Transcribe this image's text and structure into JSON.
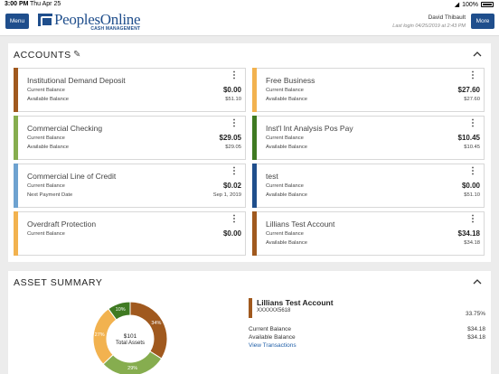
{
  "status": {
    "time": "3:00 PM",
    "date": "Thu Apr 25",
    "battery": "100%"
  },
  "header": {
    "menu_label": "Menu",
    "more_label": "More",
    "brand_name": "PeoplesOnline",
    "brand_sub": "CASH MANAGEMENT",
    "user_name": "David Thibault",
    "last_login": "Last login 04/25/2019 at 2:43 PM"
  },
  "accounts": {
    "title": "ACCOUNTS",
    "cards": [
      {
        "name": "Institutional Demand Deposit",
        "color": "#a0591e",
        "l1": "Current Balance",
        "v1": "$0.00",
        "l2": "Available Balance",
        "v2": "$51.10"
      },
      {
        "name": "Free Business",
        "color": "#f2b24f",
        "l1": "Current Balance",
        "v1": "$27.60",
        "l2": "Available Balance",
        "v2": "$27.60"
      },
      {
        "name": "Commercial Checking",
        "color": "#86ad4f",
        "l1": "Current Balance",
        "v1": "$29.05",
        "l2": "Available Balance",
        "v2": "$29.05"
      },
      {
        "name": "Inst'l Int Analysis Pos Pay",
        "color": "#3f7a22",
        "l1": "Current Balance",
        "v1": "$10.45",
        "l2": "Available Balance",
        "v2": "$10.45"
      },
      {
        "name": "Commercial Line of Credit",
        "color": "#6ea2d0",
        "l1": "Current Balance",
        "v1": "$0.02",
        "l2": "Next Payment Date",
        "v2": "Sep 1, 2019"
      },
      {
        "name": "test",
        "color": "#1f4e8c",
        "l1": "Current Balance",
        "v1": "$0.00",
        "l2": "Available Balance",
        "v2": "$51.10"
      },
      {
        "name": "Overdraft Protection",
        "color": "#f2b24f",
        "l1": "Current Balance",
        "v1": "$0.00",
        "l2": "",
        "v2": ""
      },
      {
        "name": "Lillians Test Account",
        "color": "#a0591e",
        "l1": "Current Balance",
        "v1": "$34.18",
        "l2": "Available Balance",
        "v2": "$34.18"
      }
    ]
  },
  "asset_summary": {
    "title": "ASSET SUMMARY",
    "total_amount": "$101",
    "total_label": "Total Assets",
    "segments": [
      {
        "label": "34%",
        "value": 34,
        "color": "#a0591e"
      },
      {
        "label": "29%",
        "value": 29,
        "color": "#86ad4f"
      },
      {
        "label": "27%",
        "value": 27,
        "color": "#f2b24f"
      },
      {
        "label": "10%",
        "value": 10,
        "color": "#3f7a22"
      }
    ],
    "detail": {
      "account_name": "Lillians Test Account",
      "account_number": "XXXXXX5618",
      "percent": "33.75%",
      "current_label": "Current Balance",
      "current_value": "$34.18",
      "available_label": "Available Balance",
      "available_value": "$34.18",
      "view_link": "View Transactions"
    }
  }
}
